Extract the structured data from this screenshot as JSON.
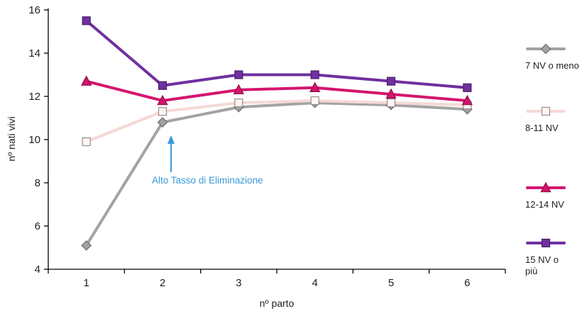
{
  "chart_data": {
    "type": "line",
    "title": "",
    "xlabel": "nº parto",
    "ylabel": "nº nati vivi",
    "categories": [
      "1",
      "2",
      "3",
      "4",
      "5",
      "6"
    ],
    "ylim": [
      4,
      16
    ],
    "yticks": [
      16,
      14,
      12,
      10,
      8,
      6,
      4
    ],
    "grid": false,
    "legend_position": "right",
    "series": [
      {
        "name": "7 NV o meno",
        "marker": "diamond",
        "color": "#a3a3a3",
        "marker_fill": "#a3a3a3",
        "marker_stroke": "#6b6b6b",
        "values": [
          5.1,
          10.8,
          11.5,
          11.7,
          11.6,
          11.4
        ]
      },
      {
        "name": "8-11 NV",
        "marker": "square-open",
        "color": "#f5d9d6",
        "marker_fill": "#fdf6f5",
        "marker_stroke": "#9c8b8a",
        "values": [
          9.9,
          11.3,
          11.7,
          11.8,
          11.7,
          11.6
        ]
      },
      {
        "name": "12-14 NV",
        "marker": "triangle",
        "color": "#d5146e",
        "marker_fill": "#d5146e",
        "marker_stroke": "#8e0c49",
        "values": [
          12.7,
          11.8,
          12.3,
          12.4,
          12.1,
          11.8
        ]
      },
      {
        "name": "15 NV o più",
        "marker": "square",
        "color": "#7030a0",
        "marker_fill": "#7030a0",
        "marker_stroke": "#47206b",
        "values": [
          15.5,
          12.5,
          13.0,
          13.0,
          12.7,
          12.4
        ]
      }
    ],
    "annotation": {
      "text": "Alto Tasso di Eliminazione",
      "color": "#3a9ad9",
      "arrow_x_category": "2"
    }
  },
  "colors": {
    "axis": "#000000",
    "tick_label": "#1f1f1f"
  }
}
